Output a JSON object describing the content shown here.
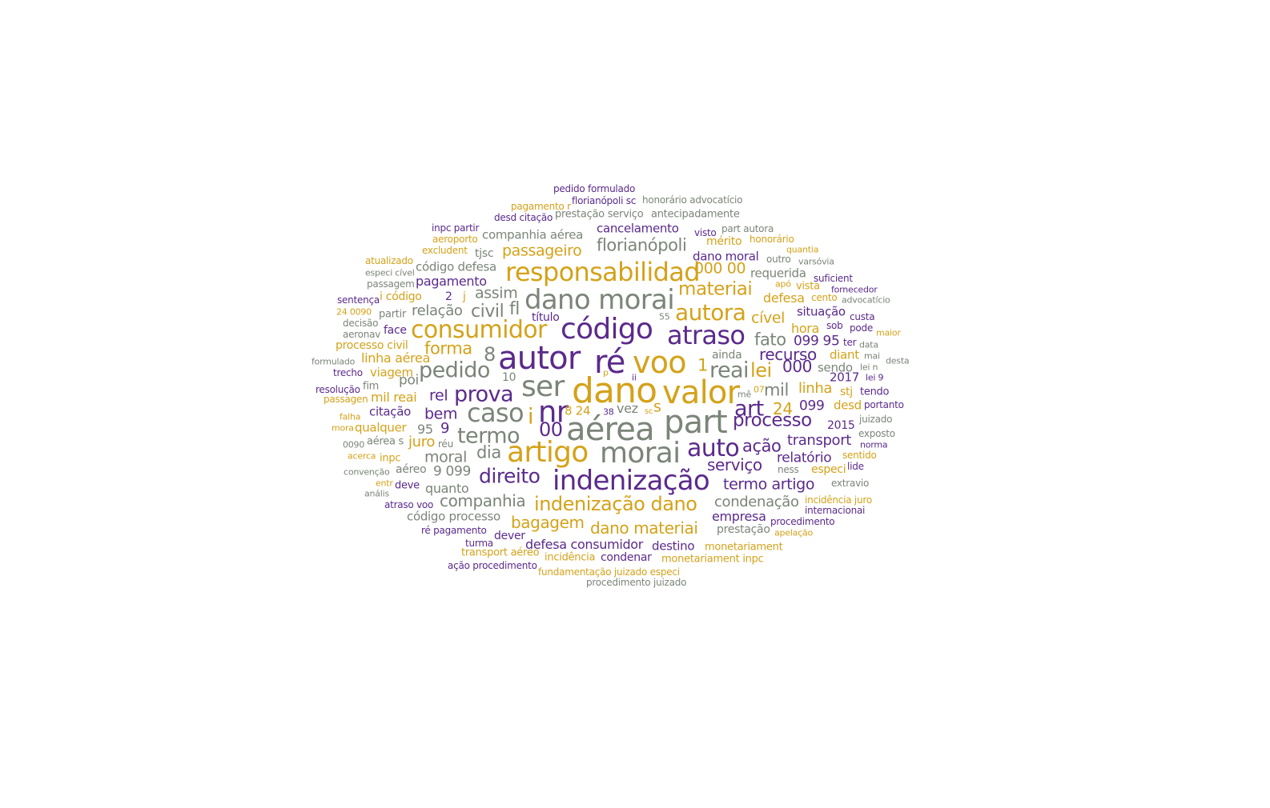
{
  "palette": {
    "grey": "#7b8579",
    "purple": "#5b2a8c",
    "gold": "#d4a21a"
  },
  "words": [
    {
      "text": "pedido formulado",
      "c": "purple"
    },
    {
      "text": "florianópoli sc",
      "c": "purple"
    },
    {
      "text": "honorário advocatício",
      "c": "grey"
    },
    {
      "text": "pagamento r",
      "c": "gold"
    },
    {
      "text": "desd citação",
      "c": "purple"
    },
    {
      "text": "prestação serviço",
      "c": "grey"
    },
    {
      "text": "antecipadamente",
      "c": "grey"
    },
    {
      "text": "inpc partir",
      "c": "purple"
    },
    {
      "text": "cancelamento",
      "c": "purple"
    },
    {
      "text": "visto",
      "c": "purple"
    },
    {
      "text": "part autora",
      "c": "grey"
    },
    {
      "text": "aeroporto",
      "c": "gold"
    },
    {
      "text": "companhia aérea",
      "c": "grey"
    },
    {
      "text": "mérito",
      "c": "gold"
    },
    {
      "text": "honorário",
      "c": "gold"
    },
    {
      "text": "excludent",
      "c": "gold"
    },
    {
      "text": "florianópoli",
      "c": "grey"
    },
    {
      "text": "passageiro",
      "c": "gold"
    },
    {
      "text": "quantia",
      "c": "gold"
    },
    {
      "text": "tjsc",
      "c": "grey"
    },
    {
      "text": "dano moral",
      "c": "purple"
    },
    {
      "text": "outro",
      "c": "grey"
    },
    {
      "text": "varsóvia",
      "c": "grey"
    },
    {
      "text": "atualizado",
      "c": "gold"
    },
    {
      "text": "código defesa",
      "c": "grey"
    },
    {
      "text": "responsabilidad",
      "c": "gold"
    },
    {
      "text": "000 00",
      "c": "gold"
    },
    {
      "text": "especi cível",
      "c": "grey"
    },
    {
      "text": "requerida",
      "c": "grey"
    },
    {
      "text": "suficient",
      "c": "purple"
    },
    {
      "text": "passagem",
      "c": "grey"
    },
    {
      "text": "pagamento",
      "c": "purple"
    },
    {
      "text": "apó",
      "c": "gold"
    },
    {
      "text": "vista",
      "c": "gold"
    },
    {
      "text": "fornecedor",
      "c": "purple"
    },
    {
      "text": "materiai",
      "c": "gold"
    },
    {
      "text": "dano morai",
      "c": "grey"
    },
    {
      "text": "assim",
      "c": "grey"
    },
    {
      "text": "sentença",
      "c": "purple"
    },
    {
      "text": "i código",
      "c": "gold"
    },
    {
      "text": "2",
      "c": "purple"
    },
    {
      "text": "j",
      "c": "gold"
    },
    {
      "text": "defesa",
      "c": "gold"
    },
    {
      "text": "cento",
      "c": "gold"
    },
    {
      "text": "advocatício",
      "c": "grey"
    },
    {
      "text": "24 0090",
      "c": "gold"
    },
    {
      "text": "partir",
      "c": "grey"
    },
    {
      "text": "relação",
      "c": "grey"
    },
    {
      "text": "civil",
      "c": "grey"
    },
    {
      "text": "fl",
      "c": "grey"
    },
    {
      "text": "autora",
      "c": "gold"
    },
    {
      "text": "situação",
      "c": "purple"
    },
    {
      "text": "custa",
      "c": "purple"
    },
    {
      "text": "decisão",
      "c": "grey"
    },
    {
      "text": "título",
      "c": "purple"
    },
    {
      "text": "55",
      "c": "grey"
    },
    {
      "text": "cível",
      "c": "gold"
    },
    {
      "text": "sob",
      "c": "purple"
    },
    {
      "text": "pode",
      "c": "purple"
    },
    {
      "text": "aeronav",
      "c": "grey"
    },
    {
      "text": "face",
      "c": "purple"
    },
    {
      "text": "consumidor",
      "c": "gold"
    },
    {
      "text": "código",
      "c": "purple"
    },
    {
      "text": "atraso",
      "c": "purple"
    },
    {
      "text": "hora",
      "c": "gold"
    },
    {
      "text": "maior",
      "c": "gold"
    },
    {
      "text": "processo civil",
      "c": "gold"
    },
    {
      "text": "forma",
      "c": "gold"
    },
    {
      "text": "fato",
      "c": "grey"
    },
    {
      "text": "099 95",
      "c": "purple"
    },
    {
      "text": "ter",
      "c": "purple"
    },
    {
      "text": "data",
      "c": "grey"
    },
    {
      "text": "8",
      "c": "grey"
    },
    {
      "text": "recurso",
      "c": "purple"
    },
    {
      "text": "linha aérea",
      "c": "gold"
    },
    {
      "text": "autor",
      "c": "purple"
    },
    {
      "text": "ré",
      "c": "purple"
    },
    {
      "text": "voo",
      "c": "gold"
    },
    {
      "text": "ainda",
      "c": "grey"
    },
    {
      "text": "diant",
      "c": "gold"
    },
    {
      "text": "mai",
      "c": "grey"
    },
    {
      "text": "formulado",
      "c": "grey"
    },
    {
      "text": "desta",
      "c": "grey"
    },
    {
      "text": "pedido",
      "c": "grey"
    },
    {
      "text": "1",
      "c": "gold"
    },
    {
      "text": "reai",
      "c": "grey"
    },
    {
      "text": "lei",
      "c": "gold"
    },
    {
      "text": "000",
      "c": "purple"
    },
    {
      "text": "sendo",
      "c": "grey"
    },
    {
      "text": "lei n",
      "c": "grey"
    },
    {
      "text": "trecho",
      "c": "purple"
    },
    {
      "text": "viagem",
      "c": "gold"
    },
    {
      "text": "10",
      "c": "grey"
    },
    {
      "text": "p",
      "c": "gold"
    },
    {
      "text": "ii",
      "c": "purple"
    },
    {
      "text": "2017",
      "c": "purple"
    },
    {
      "text": "lei 9",
      "c": "purple"
    },
    {
      "text": "poi",
      "c": "grey"
    },
    {
      "text": "ser",
      "c": "grey"
    },
    {
      "text": "dano",
      "c": "gold"
    },
    {
      "text": "valor",
      "c": "gold"
    },
    {
      "text": "mil",
      "c": "grey"
    },
    {
      "text": "linha",
      "c": "gold"
    },
    {
      "text": "fim",
      "c": "grey"
    },
    {
      "text": "07",
      "c": "gold"
    },
    {
      "text": "resolução",
      "c": "purple"
    },
    {
      "text": "mê",
      "c": "grey"
    },
    {
      "text": "stj",
      "c": "gold"
    },
    {
      "text": "tendo",
      "c": "purple"
    },
    {
      "text": "mil reai",
      "c": "gold"
    },
    {
      "text": "rel",
      "c": "purple"
    },
    {
      "text": "prova",
      "c": "purple"
    },
    {
      "text": "passagen",
      "c": "gold"
    },
    {
      "text": "art",
      "c": "purple"
    },
    {
      "text": "24",
      "c": "gold"
    },
    {
      "text": "099",
      "c": "purple"
    },
    {
      "text": "desd",
      "c": "gold"
    },
    {
      "text": "portanto",
      "c": "purple"
    },
    {
      "text": "i",
      "c": "gold"
    },
    {
      "text": "nr",
      "c": "purple"
    },
    {
      "text": "citação",
      "c": "purple"
    },
    {
      "text": "bem",
      "c": "purple"
    },
    {
      "text": "caso",
      "c": "grey"
    },
    {
      "text": "8 24",
      "c": "gold"
    },
    {
      "text": "38",
      "c": "purple"
    },
    {
      "text": "vez",
      "c": "grey"
    },
    {
      "text": "sc",
      "c": "gold"
    },
    {
      "text": "s",
      "c": "gold"
    },
    {
      "text": "part",
      "c": "grey"
    },
    {
      "text": "processo",
      "c": "purple"
    },
    {
      "text": "falha",
      "c": "gold"
    },
    {
      "text": "juizado",
      "c": "grey"
    },
    {
      "text": "mora",
      "c": "gold"
    },
    {
      "text": "qualquer",
      "c": "gold"
    },
    {
      "text": "9",
      "c": "purple"
    },
    {
      "text": "95",
      "c": "grey"
    },
    {
      "text": "00",
      "c": "purple"
    },
    {
      "text": "aérea",
      "c": "grey"
    },
    {
      "text": "2015",
      "c": "purple"
    },
    {
      "text": "termo",
      "c": "grey"
    },
    {
      "text": "exposto",
      "c": "grey"
    },
    {
      "text": "0090",
      "c": "grey"
    },
    {
      "text": "aérea s",
      "c": "grey"
    },
    {
      "text": "juro",
      "c": "gold"
    },
    {
      "text": "réu",
      "c": "grey"
    },
    {
      "text": "transport",
      "c": "purple"
    },
    {
      "text": "norma",
      "c": "purple"
    },
    {
      "text": "auto",
      "c": "purple"
    },
    {
      "text": "ação",
      "c": "purple"
    },
    {
      "text": "acerca",
      "c": "gold"
    },
    {
      "text": "inpc",
      "c": "gold"
    },
    {
      "text": "moral",
      "c": "grey"
    },
    {
      "text": "dia",
      "c": "grey"
    },
    {
      "text": "artigo",
      "c": "gold"
    },
    {
      "text": "morai",
      "c": "grey"
    },
    {
      "text": "relatório",
      "c": "purple"
    },
    {
      "text": "sentido",
      "c": "gold"
    },
    {
      "text": "convenção",
      "c": "grey"
    },
    {
      "text": "aéreo",
      "c": "grey"
    },
    {
      "text": "9 099",
      "c": "grey"
    },
    {
      "text": "serviço",
      "c": "purple"
    },
    {
      "text": "ness",
      "c": "grey"
    },
    {
      "text": "especi",
      "c": "gold"
    },
    {
      "text": "lide",
      "c": "purple"
    },
    {
      "text": "entr",
      "c": "gold"
    },
    {
      "text": "deve",
      "c": "purple"
    },
    {
      "text": "quanto",
      "c": "grey"
    },
    {
      "text": "direito",
      "c": "purple"
    },
    {
      "text": "indenização",
      "c": "purple"
    },
    {
      "text": "termo artigo",
      "c": "purple"
    },
    {
      "text": "extravio",
      "c": "grey"
    },
    {
      "text": "anális",
      "c": "grey"
    },
    {
      "text": "companhia",
      "c": "grey"
    },
    {
      "text": "indenização dano",
      "c": "gold"
    },
    {
      "text": "condenação",
      "c": "grey"
    },
    {
      "text": "incidência juro",
      "c": "gold"
    },
    {
      "text": "atraso voo",
      "c": "purple"
    },
    {
      "text": "internacionai",
      "c": "purple"
    },
    {
      "text": "código processo",
      "c": "grey"
    },
    {
      "text": "empresa",
      "c": "purple"
    },
    {
      "text": "bagagem",
      "c": "gold"
    },
    {
      "text": "procedimento",
      "c": "purple"
    },
    {
      "text": "dano materiai",
      "c": "gold"
    },
    {
      "text": "ré pagamento",
      "c": "purple"
    },
    {
      "text": "prestação",
      "c": "grey"
    },
    {
      "text": "apelação",
      "c": "gold"
    },
    {
      "text": "dever",
      "c": "purple"
    },
    {
      "text": "turma",
      "c": "purple"
    },
    {
      "text": "defesa consumidor",
      "c": "purple"
    },
    {
      "text": "destino",
      "c": "purple"
    },
    {
      "text": "monetariament",
      "c": "gold"
    },
    {
      "text": "transport aéreo",
      "c": "gold"
    },
    {
      "text": "incidência",
      "c": "gold"
    },
    {
      "text": "condenar",
      "c": "purple"
    },
    {
      "text": "monetariament inpc",
      "c": "gold"
    },
    {
      "text": "ação procedimento",
      "c": "purple"
    },
    {
      "text": "fundamentação juizado especi",
      "c": "gold"
    },
    {
      "text": "procedimento juizado",
      "c": "grey"
    }
  ]
}
